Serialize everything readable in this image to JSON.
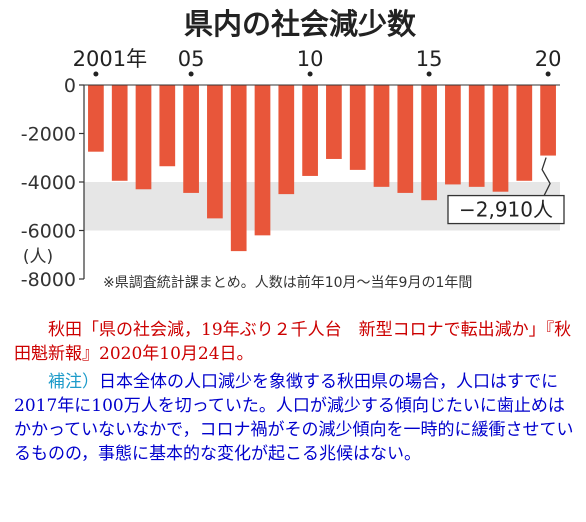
{
  "chart_data": {
    "type": "bar",
    "title": "県内の社会減少数",
    "categories": [
      "2001",
      "2002",
      "2003",
      "2004",
      "2005",
      "2006",
      "2007",
      "2008",
      "2009",
      "2010",
      "2011",
      "2012",
      "2013",
      "2014",
      "2015",
      "2016",
      "2017",
      "2018",
      "2019",
      "2020"
    ],
    "values": [
      -2750,
      -3950,
      -4300,
      -3350,
      -4450,
      -5500,
      -6850,
      -6200,
      -4500,
      -3750,
      -3050,
      -3500,
      -4200,
      -4450,
      -4750,
      -4100,
      -4200,
      -4400,
      -3950,
      -2910
    ],
    "x_tick_labels": [
      {
        "category": "2001",
        "label": "2001年"
      },
      {
        "category": "2005",
        "label": "05"
      },
      {
        "category": "2010",
        "label": "10"
      },
      {
        "category": "2015",
        "label": "15"
      },
      {
        "category": "2020",
        "label": "20"
      }
    ],
    "y_ticks": [
      0,
      -2000,
      -4000,
      -6000,
      -8000
    ],
    "y_tick_labels": [
      "0",
      "-2000",
      "-4000",
      "-6000",
      "-8000"
    ],
    "ylim": [
      -8000,
      0
    ],
    "ylabel": "(人)",
    "shaded_band": [
      -6000,
      -4000
    ],
    "bar_color": "#e8563a",
    "callout": {
      "category": "2020",
      "label": "−2,910人"
    },
    "note": "※県調査統計課まとめ。人数は前年10月〜当年9月の1年間"
  },
  "caption": {
    "source": "秋田「県の社会減，19年ぶり２千人台　新型コロナで転出減か」『秋田魁新報』2020年10月24日。",
    "note_label": "補注）",
    "note_text": "日本全体の人口減少を象徴する秋田県の場合，人口はすでに2017年に100万人を切っていた。人口が減少する傾向じたいに歯止めはかかっていないなかで，コロナ禍がその減少傾向を一時的に緩衝させているものの，事態に基本的な変化が起こる兆候はない。"
  }
}
